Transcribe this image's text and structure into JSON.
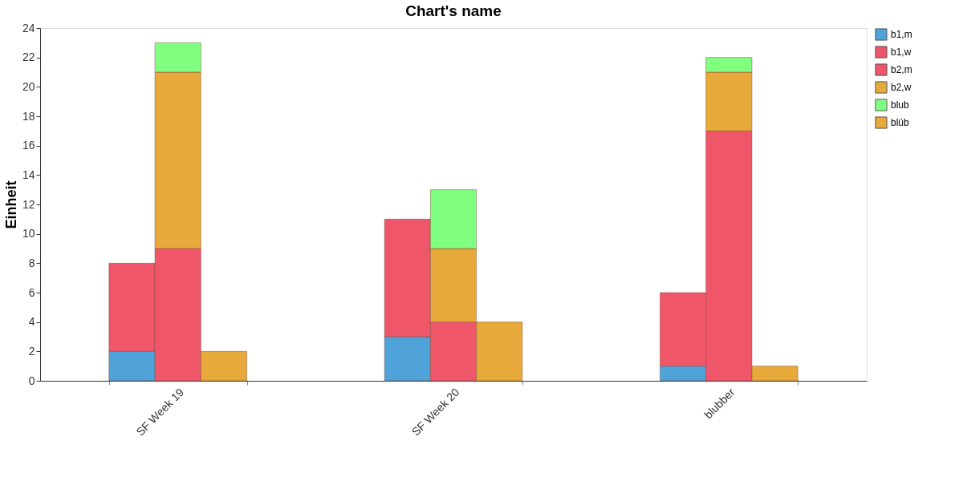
{
  "chart_data": {
    "type": "bar",
    "title": "Chart's name",
    "ylabel": "Einheit",
    "categories": [
      "SF Week 19",
      "SF Week 20",
      "blubber"
    ],
    "series": [
      {
        "name": "b1,m",
        "color": "#4fa3d9",
        "base": [
          0,
          0,
          0
        ],
        "values": [
          2,
          3,
          1
        ]
      },
      {
        "name": "b1,w",
        "color": "#f0566a",
        "base": [
          2,
          3,
          1
        ],
        "values": [
          6,
          8,
          5
        ]
      },
      {
        "name": "b2,m",
        "color": "#f0566a",
        "base": [
          0,
          0,
          0
        ],
        "values": [
          9,
          4,
          17
        ]
      },
      {
        "name": "b2,w",
        "color": "#e6a93a",
        "base": [
          9,
          4,
          17
        ],
        "values": [
          12,
          5,
          4
        ]
      },
      {
        "name": "blub",
        "color": "#80ff80",
        "base": [
          21,
          9,
          21
        ],
        "values": [
          2,
          4,
          1
        ]
      },
      {
        "name": "blüb",
        "color": "#e6a93a",
        "base": [
          0,
          0,
          0
        ],
        "values": [
          2,
          4,
          1
        ]
      }
    ],
    "ylim": [
      0,
      24
    ],
    "yticks": [
      0,
      2,
      4,
      6,
      8,
      10,
      12,
      14,
      16,
      18,
      20,
      22,
      24
    ],
    "grid": false,
    "legend": "right"
  }
}
